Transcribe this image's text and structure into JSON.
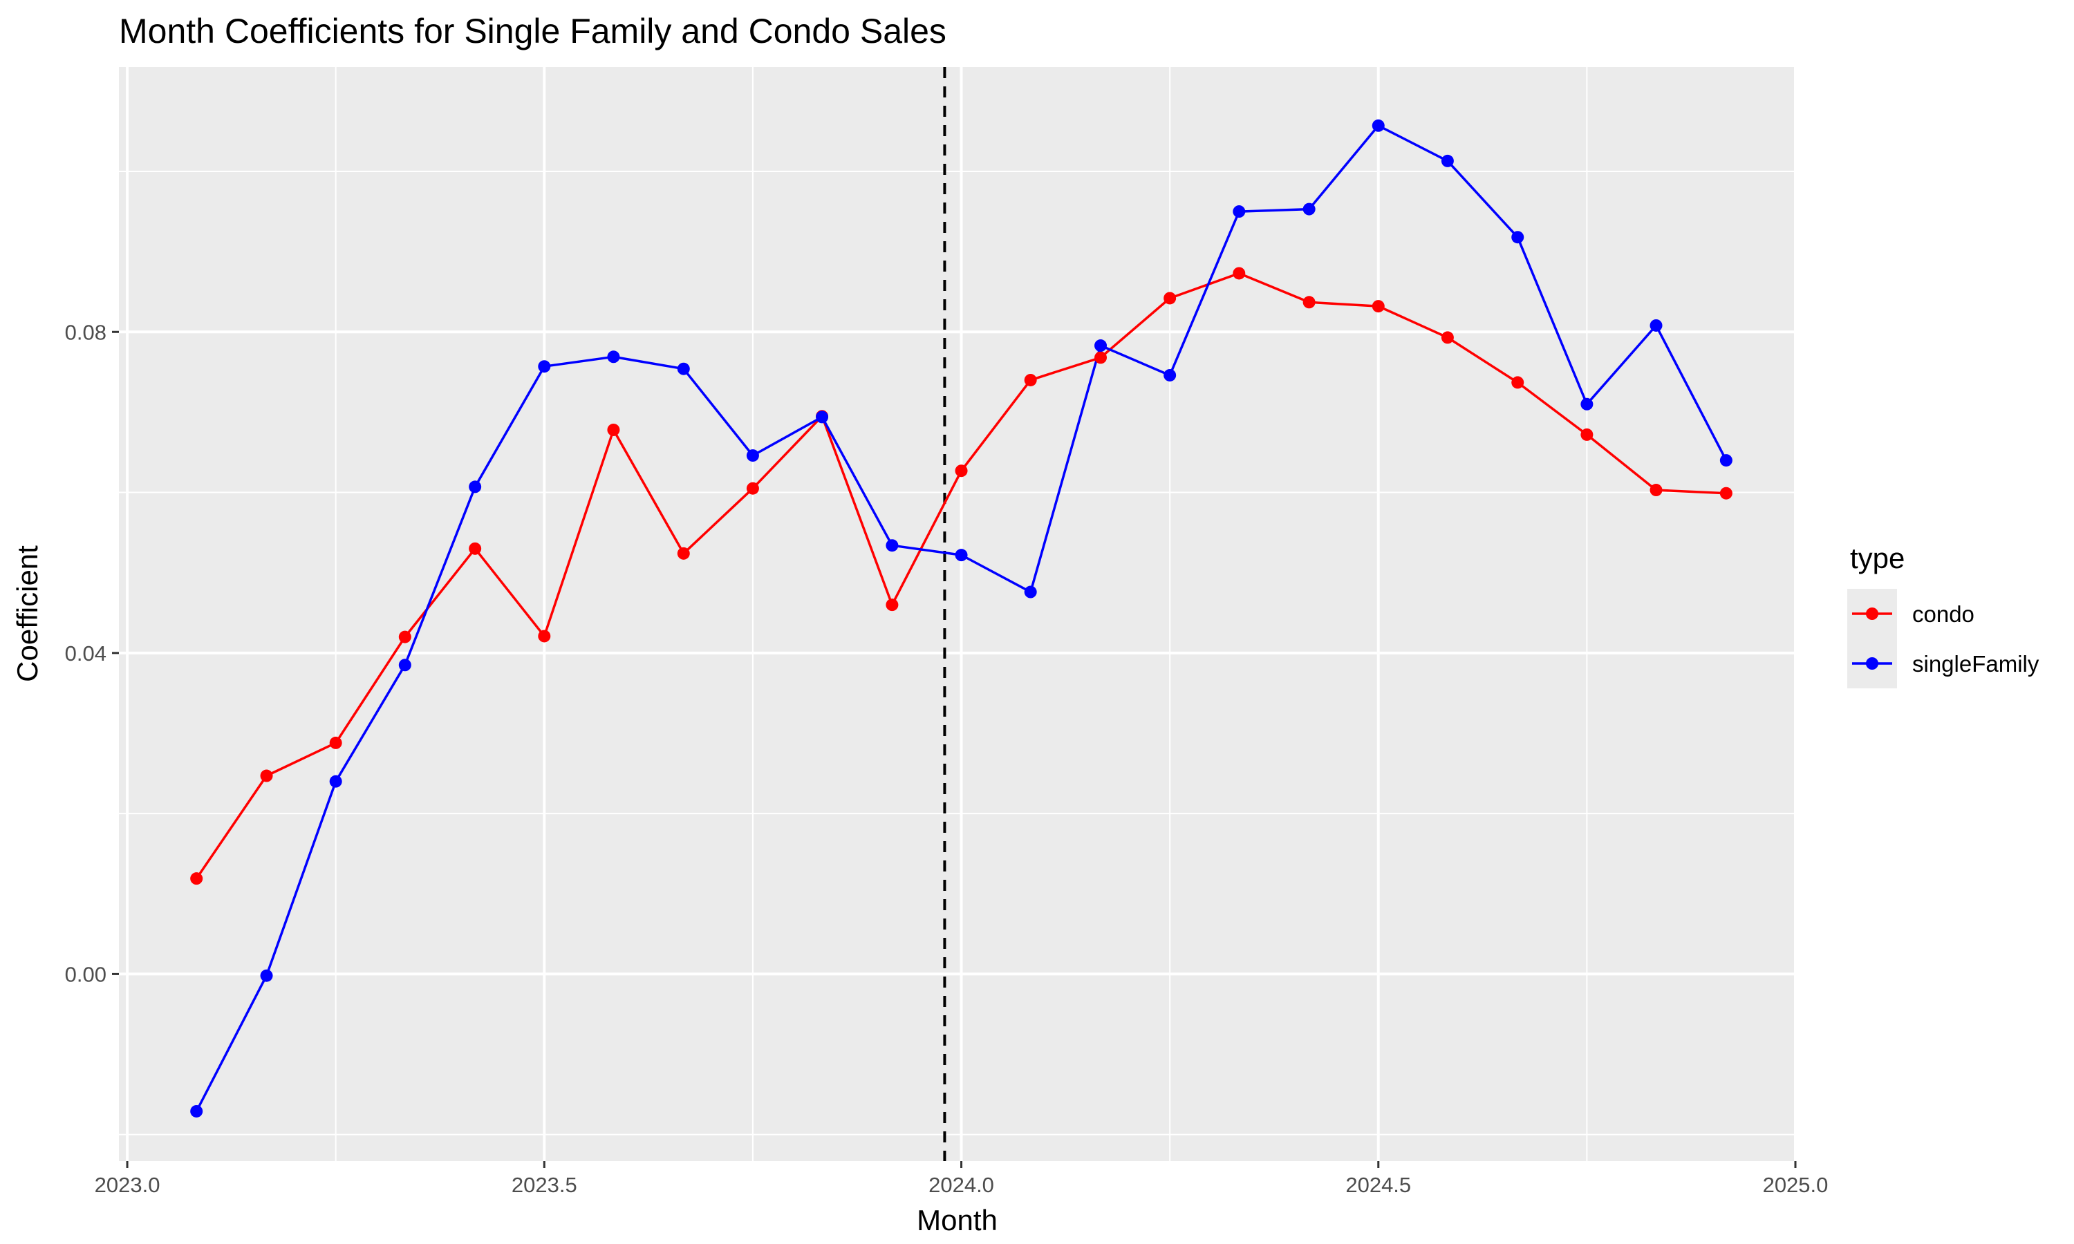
{
  "chart_data": {
    "type": "line",
    "title": "Month Coefficients for Single Family and Condo Sales",
    "xlabel": "Month",
    "ylabel": "Coefficient",
    "xlim": [
      2022.99,
      2025.0
    ],
    "ylim": [
      -0.0233,
      0.113
    ],
    "x_ticks": [
      2023.0,
      2023.5,
      2024.0,
      2024.5,
      2025.0
    ],
    "x_tick_labels": [
      "2023.0",
      "2023.5",
      "2024.0",
      "2024.5",
      "2025.0"
    ],
    "y_ticks": [
      0.0,
      0.04,
      0.08
    ],
    "y_tick_labels": [
      "0.00",
      "0.04",
      "0.08"
    ],
    "x_minor_ticks": [
      2023.25,
      2023.75,
      2024.25,
      2024.75
    ],
    "y_minor_ticks": [
      -0.02,
      0.02,
      0.06,
      0.1
    ],
    "grid": true,
    "vline": {
      "x": 2023.98,
      "style": "dashed",
      "color": "#000000"
    },
    "legend": {
      "title": "type",
      "placement": "right"
    },
    "x": [
      2023.083,
      2023.167,
      2023.25,
      2023.333,
      2023.417,
      2023.5,
      2023.583,
      2023.667,
      2023.75,
      2023.833,
      2023.917,
      2024.0,
      2024.083,
      2024.167,
      2024.25,
      2024.333,
      2024.417,
      2024.5,
      2024.583,
      2024.667,
      2024.75,
      2024.833,
      2024.917
    ],
    "series": [
      {
        "name": "condo",
        "color": "#ff0000",
        "values": [
          0.0119,
          0.0247,
          0.0288,
          0.042,
          0.053,
          0.0421,
          0.0678,
          0.0524,
          0.0605,
          0.0695,
          0.046,
          0.0627,
          0.074,
          0.0768,
          0.0842,
          0.0873,
          0.0837,
          0.0832,
          0.0793,
          0.0737,
          0.0672,
          0.0603,
          0.0599
        ]
      },
      {
        "name": "singleFamily",
        "color": "#0000ff",
        "values": [
          -0.0171,
          -0.0002,
          0.024,
          0.0385,
          0.0607,
          0.0757,
          0.0769,
          0.0754,
          0.0646,
          0.0694,
          0.0534,
          0.0522,
          0.0476,
          0.0783,
          0.0746,
          0.095,
          0.0953,
          0.1057,
          0.1013,
          0.0918,
          0.071,
          0.0808,
          0.064
        ]
      }
    ]
  }
}
